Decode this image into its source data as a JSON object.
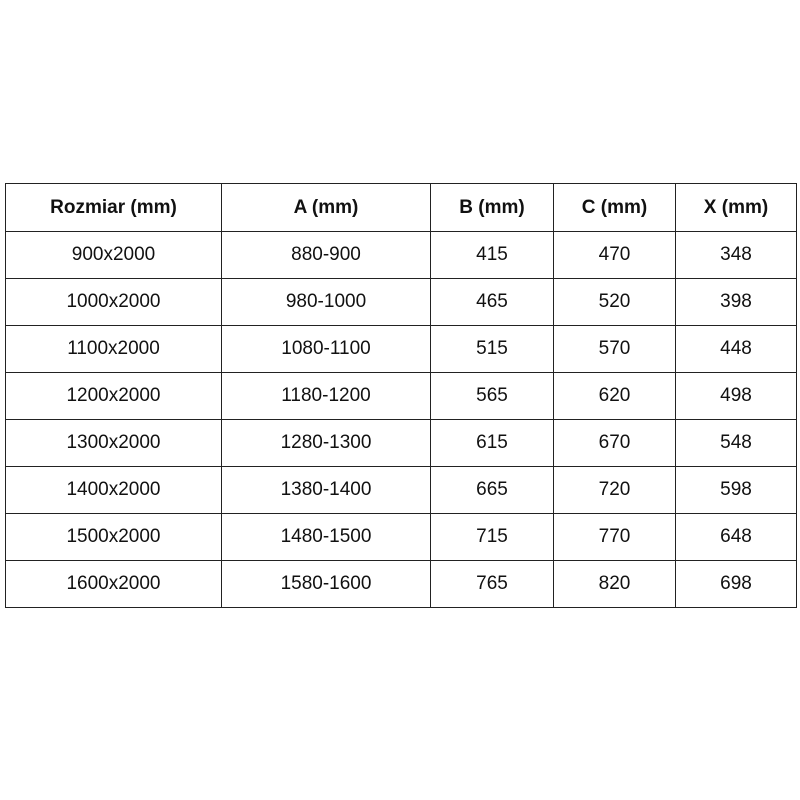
{
  "table": {
    "headers": [
      "Rozmiar (mm)",
      "A (mm)",
      "B (mm)",
      "C (mm)",
      "X (mm)"
    ],
    "rows": [
      [
        "900x2000",
        "880-900",
        "415",
        "470",
        "348"
      ],
      [
        "1000x2000",
        "980-1000",
        "465",
        "520",
        "398"
      ],
      [
        "1100x2000",
        "1080-1100",
        "515",
        "570",
        "448"
      ],
      [
        "1200x2000",
        "1180-1200",
        "565",
        "620",
        "498"
      ],
      [
        "1300x2000",
        "1280-1300",
        "615",
        "670",
        "548"
      ],
      [
        "1400x2000",
        "1380-1400",
        "665",
        "720",
        "598"
      ],
      [
        "1500x2000",
        "1480-1500",
        "715",
        "770",
        "648"
      ],
      [
        "1600x2000",
        "1580-1600",
        "765",
        "820",
        "698"
      ]
    ]
  }
}
